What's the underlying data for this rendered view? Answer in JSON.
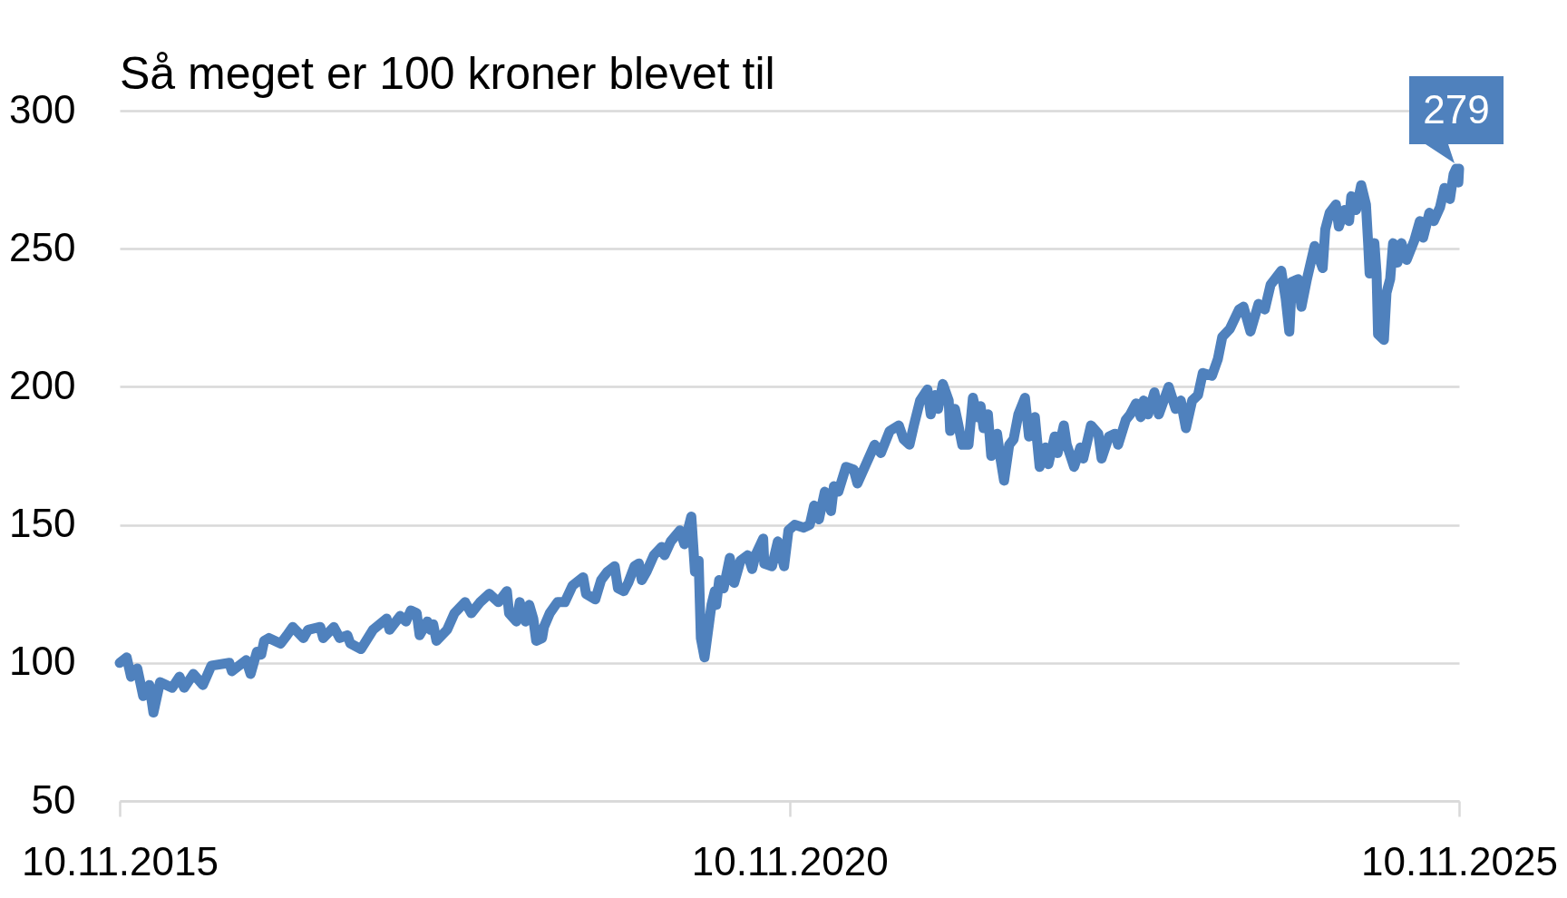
{
  "chart_data": {
    "type": "line",
    "title": "Så meget er 100 kroner blevet til",
    "x": [
      "2015-11-10",
      "2015-11-29",
      "2015-12-11",
      "2015-12-28",
      "2016-01-13",
      "2016-01-30",
      "2016-02-10",
      "2016-02-28",
      "2016-04-01",
      "2016-04-21",
      "2016-05-04",
      "2016-05-29",
      "2016-06-24",
      "2016-07-17",
      "2016-09-04",
      "2016-09-11",
      "2016-10-20",
      "2016-11-01",
      "2016-11-18",
      "2016-11-30",
      "2016-12-08",
      "2016-12-21",
      "2017-01-22",
      "2017-02-08",
      "2017-02-24",
      "2017-03-25",
      "2017-04-07",
      "2017-05-10",
      "2017-05-18",
      "2017-06-16",
      "2017-07-02",
      "2017-07-23",
      "2017-07-31",
      "2017-08-29",
      "2017-10-01",
      "2017-11-07",
      "2017-11-15",
      "2017-12-14",
      "2017-12-30",
      "2018-01-12",
      "2018-01-28",
      "2018-02-05",
      "2018-02-26",
      "2018-03-06",
      "2018-03-14",
      "2018-03-23",
      "2018-04-21",
      "2018-05-11",
      "2018-06-09",
      "2018-06-26",
      "2018-07-20",
      "2018-08-14",
      "2018-09-08",
      "2018-10-01",
      "2018-10-07",
      "2018-10-27",
      "2018-11-05",
      "2018-11-21",
      "2018-12-01",
      "2018-12-12",
      "2018-12-20",
      "2019-01-05",
      "2019-01-10",
      "2019-01-26",
      "2019-02-16",
      "2019-03-08",
      "2019-03-29",
      "2019-04-27",
      "2019-05-05",
      "2019-05-30",
      "2019-06-15",
      "2019-07-02",
      "2019-07-22",
      "2019-07-31",
      "2019-08-16",
      "2019-08-28",
      "2019-09-14",
      "2019-09-26",
      "2019-10-04",
      "2019-10-17",
      "2019-11-06",
      "2019-11-27",
      "2019-12-05",
      "2019-12-22",
      "2020-01-16",
      "2020-01-28",
      "2020-02-16",
      "2020-02-26",
      "2020-03-07",
      "2020-03-13",
      "2020-03-23",
      "2020-04-03",
      "2020-04-11",
      "2020-04-20",
      "2020-04-24",
      "2020-05-02",
      "2020-05-14",
      "2020-05-31",
      "2020-06-12",
      "2020-06-29",
      "2020-07-19",
      "2020-07-31",
      "2020-08-09",
      "2020-08-30",
      "2020-09-02",
      "2020-09-23",
      "2020-10-09",
      "2020-10-26",
      "2020-11-07",
      "2020-11-24",
      "2020-12-19",
      "2021-01-04",
      "2021-01-16",
      "2021-01-29",
      "2021-02-14",
      "2021-03-03",
      "2021-03-11",
      "2021-03-23",
      "2021-04-13",
      "2021-05-04",
      "2021-05-14",
      "2021-06-10",
      "2021-06-30",
      "2021-07-17",
      "2021-08-10",
      "2021-09-04",
      "2021-09-17",
      "2021-10-03",
      "2021-10-15",
      "2021-11-01",
      "2021-11-21",
      "2021-11-30",
      "2021-12-12",
      "2021-12-20",
      "2022-01-02",
      "2022-01-18",
      "2022-01-22",
      "2022-02-04",
      "2022-02-12",
      "2022-02-24",
      "2022-03-13",
      "2022-03-25",
      "2022-04-06",
      "2022-04-15",
      "2022-04-23",
      "2022-05-05",
      "2022-05-14",
      "2022-05-30",
      "2022-06-07",
      "2022-06-18",
      "2022-07-02",
      "2022-07-14",
      "2022-07-27",
      "2022-08-14",
      "2022-08-25",
      "2022-09-10",
      "2022-09-23",
      "2022-10-09",
      "2022-10-17",
      "2022-11-03",
      "2022-11-11",
      "2022-11-28",
      "2022-12-06",
      "2022-12-26",
      "2023-01-12",
      "2023-01-20",
      "2023-02-10",
      "2023-03-02",
      "2023-03-11",
      "2023-03-31",
      "2023-04-17",
      "2023-04-25",
      "2023-05-16",
      "2023-05-28",
      "2023-06-13",
      "2023-06-26",
      "2023-07-04",
      "2023-07-16",
      "2023-08-02",
      "2023-08-14",
      "2023-09-10",
      "2023-09-29",
      "2023-10-13",
      "2023-10-27",
      "2023-11-13",
      "2023-11-29",
      "2023-12-12",
      "2024-01-06",
      "2024-01-22",
      "2024-02-03",
      "2024-02-24",
      "2024-03-20",
      "2024-04-01",
      "2024-04-20",
      "2024-05-12",
      "2024-05-29",
      "2024-06-14",
      "2024-07-13",
      "2024-07-25",
      "2024-08-04",
      "2024-08-11",
      "2024-08-28",
      "2024-09-06",
      "2024-09-21",
      "2024-10-12",
      "2024-11-03",
      "2024-11-10",
      "2024-11-22",
      "2024-12-09",
      "2024-12-17",
      "2025-01-01",
      "2025-01-14",
      "2025-01-20",
      "2025-02-02",
      "2025-02-16",
      "2025-03-01",
      "2025-03-07",
      "2025-03-11",
      "2025-03-24",
      "2025-03-30",
      "2025-04-03",
      "2025-04-19",
      "2025-04-26",
      "2025-05-06",
      "2025-05-14",
      "2025-05-26",
      "2025-06-06",
      "2025-06-20",
      "2025-07-11",
      "2025-07-26",
      "2025-08-04",
      "2025-08-21",
      "2025-09-02",
      "2025-09-19",
      "2025-10-01",
      "2025-10-16",
      "2025-10-26",
      "2025-11-02",
      "2025-11-08",
      "2025-11-10"
    ],
    "values": [
      100,
      102,
      95,
      98,
      88,
      92,
      82,
      93,
      91,
      95,
      91,
      96,
      92,
      99,
      100,
      97,
      101,
      96,
      104,
      103,
      108,
      109,
      107,
      110,
      113,
      109,
      112,
      113,
      109,
      113,
      109,
      110,
      107,
      105,
      112,
      116,
      112,
      117,
      115,
      119,
      118,
      110,
      115,
      112,
      114,
      108,
      112,
      118,
      122,
      118,
      122,
      125,
      122,
      126,
      118,
      115,
      122,
      115,
      121,
      116,
      108,
      109,
      113,
      118,
      122,
      122,
      128,
      131,
      125,
      123,
      130,
      133,
      135,
      127,
      126,
      129,
      135,
      136,
      130,
      133,
      139,
      142,
      139,
      144,
      148,
      143,
      153,
      133,
      137,
      109,
      102,
      113,
      121,
      126,
      121,
      130,
      127,
      138,
      129,
      137,
      139,
      134,
      139,
      145,
      136,
      135,
      144,
      135,
      148,
      150,
      149,
      150,
      157,
      152,
      162,
      155,
      164,
      162,
      171,
      170,
      165,
      173,
      179,
      176,
      184,
      186,
      181,
      179,
      186,
      195,
      199,
      190,
      197,
      192,
      201,
      195,
      184,
      192,
      187,
      179,
      179,
      196,
      189,
      193,
      185,
      190,
      175,
      183,
      175,
      166,
      179,
      181,
      190,
      196,
      182,
      189,
      171,
      178,
      172,
      182,
      176,
      186,
      179,
      171,
      178,
      174,
      186,
      183,
      174,
      182,
      183,
      179,
      188,
      190,
      194,
      189,
      195,
      190,
      198,
      190,
      200,
      192,
      195,
      185,
      195,
      197,
      205,
      204,
      210,
      218,
      221,
      228,
      229,
      220,
      230,
      228,
      237,
      242,
      232,
      220,
      238,
      239,
      229,
      239,
      251,
      243,
      257,
      263,
      266,
      258,
      264,
      260,
      269,
      264,
      273,
      266,
      252,
      241,
      252,
      241,
      219,
      217,
      234,
      239,
      252,
      245,
      252,
      246,
      253,
      260,
      254,
      263,
      260,
      265,
      272,
      268,
      277,
      279,
      274,
      279
    ],
    "color": "#4f81bd",
    "xlim": [
      "2015-11-10",
      "2025-11-10"
    ],
    "xticks": [
      {
        "value": "2015-11-10",
        "label": "10.11.2015"
      },
      {
        "value": "2020-11-10",
        "label": "10.11.2020"
      },
      {
        "value": "2025-11-10",
        "label": "10.11.2025"
      }
    ],
    "ylim": [
      50,
      300
    ],
    "yticks": [
      50,
      100,
      150,
      200,
      250,
      300
    ],
    "grid": "y",
    "annotations": [
      {
        "text": "279",
        "x": "2025-11-10",
        "y": 279
      }
    ]
  }
}
